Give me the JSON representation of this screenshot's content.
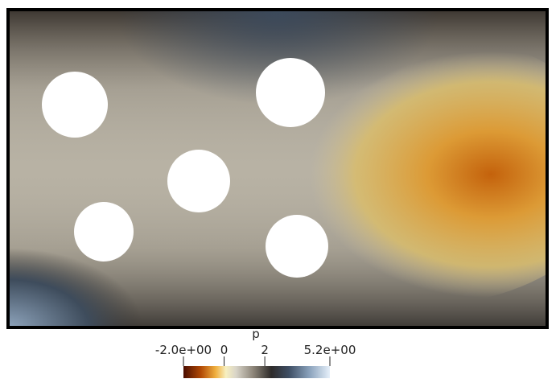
{
  "chart_data": {
    "type": "field",
    "title": "p",
    "clim": [
      -2,
      5.2
    ],
    "cticks": [
      {
        "value": -2,
        "label": "-2.0e+00"
      },
      0,
      2,
      {
        "value": 5.2,
        "label": "5.2e+00"
      }
    ]
  }
}
